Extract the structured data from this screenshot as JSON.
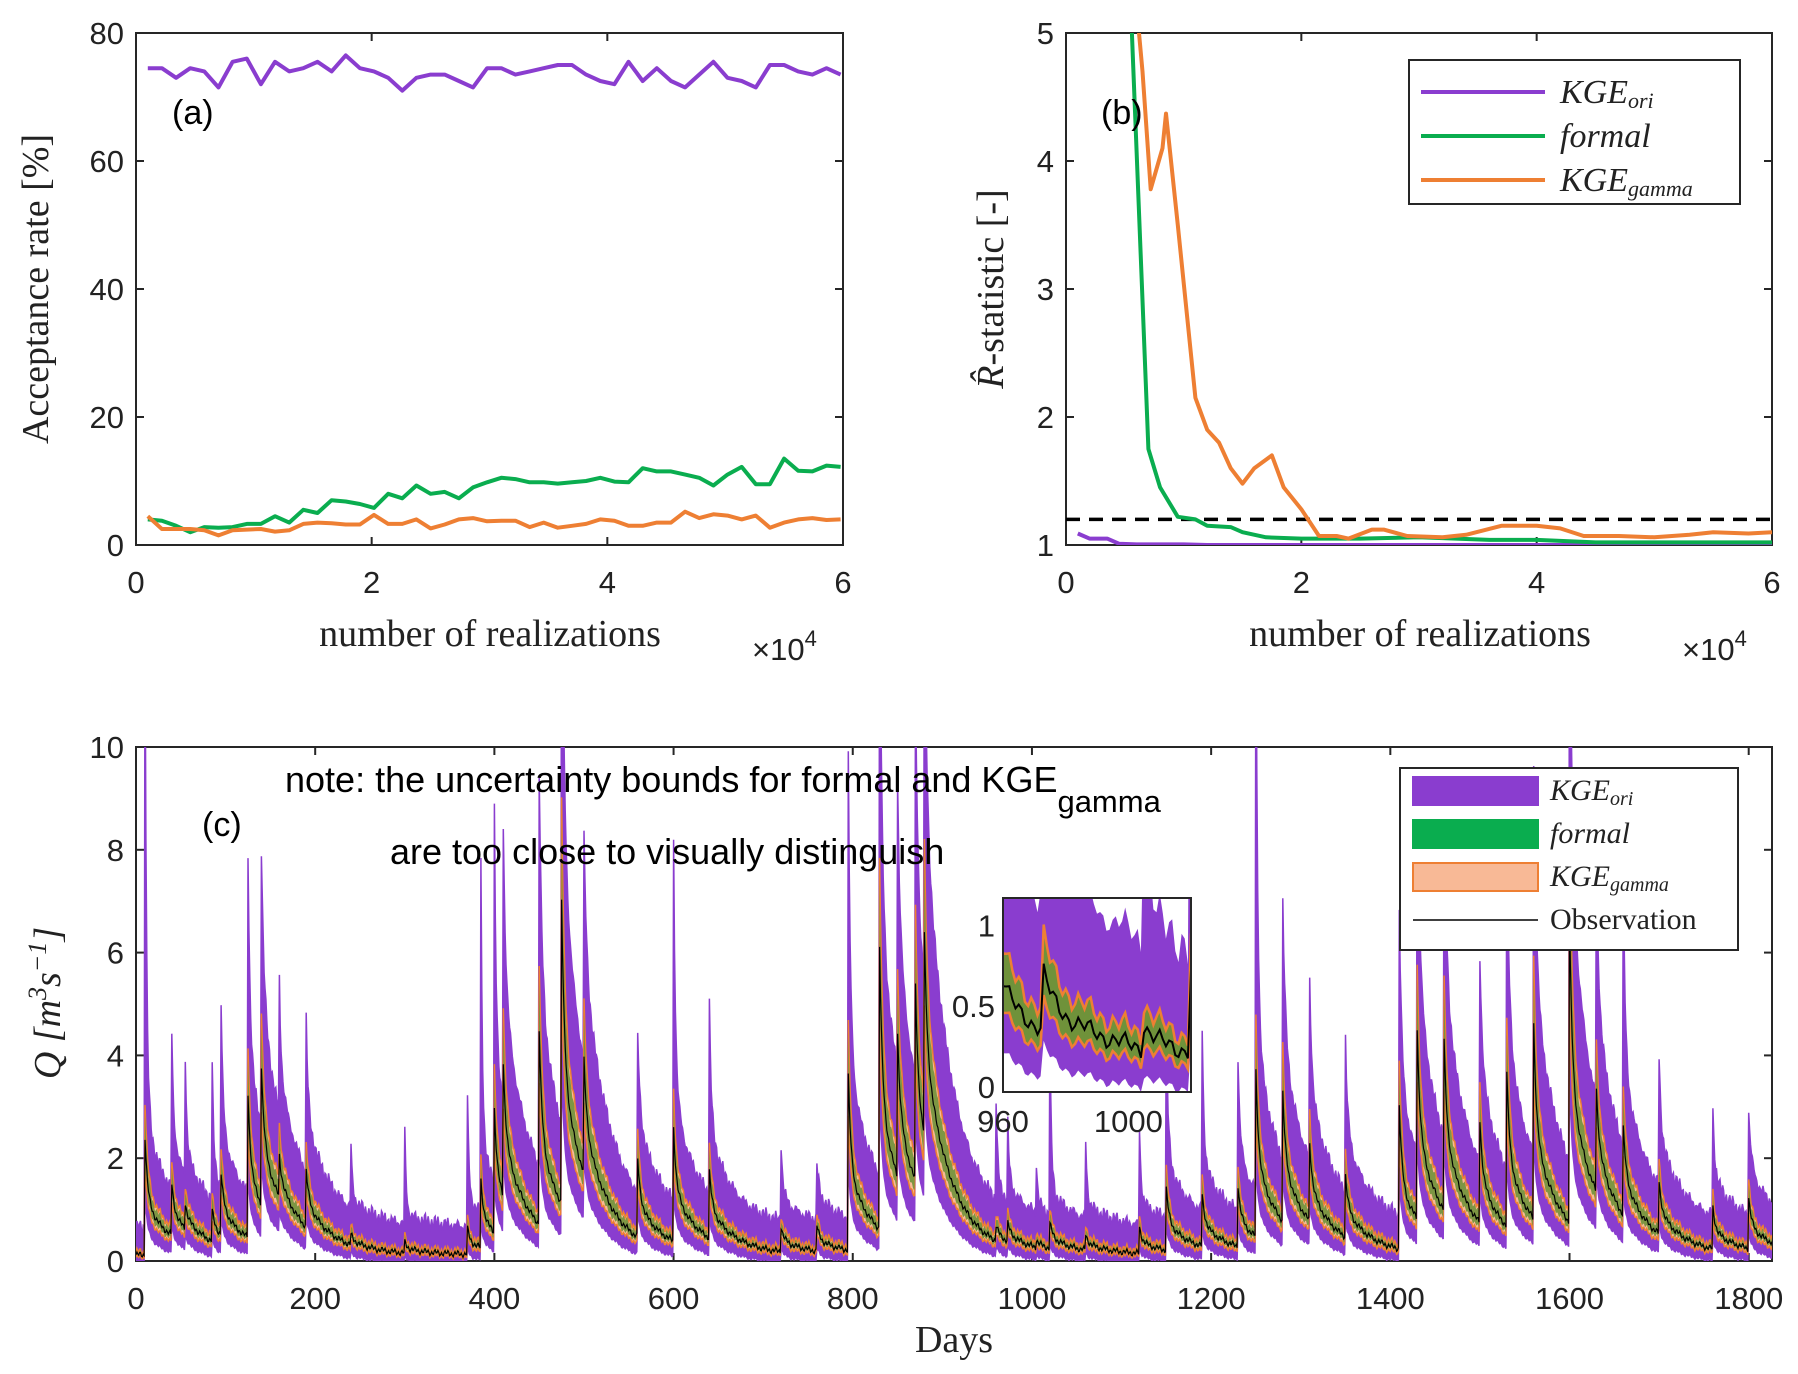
{
  "colors": {
    "purple": "#8a3dcf",
    "green": "#0aad4f",
    "orange": "#ee7f33",
    "orange_fill": "#f8b996",
    "inset_band": "#6f923a",
    "black": "#000000"
  },
  "chart_data": [
    {
      "type": "line",
      "panel_label": "(a)",
      "xlabel": "number of realizations",
      "x_multiplier": "×10",
      "x_multiplier_exp": "4",
      "ylabel": "Acceptance rate [%]",
      "xlim": [
        0,
        60000
      ],
      "ylim": [
        0,
        80
      ],
      "xticks": [
        0,
        2,
        4,
        6
      ],
      "yticks": [
        0,
        20,
        40,
        60,
        80
      ],
      "x_start": 1000,
      "x_step": 1200,
      "series": [
        {
          "name": "KGE_ori",
          "color": "purple",
          "values": [
            74.5,
            74.5,
            73,
            74.5,
            74,
            71.5,
            75.5,
            76,
            72,
            75.5,
            74,
            74.5,
            75.5,
            74,
            76.5,
            74.5,
            74,
            73,
            71,
            73,
            73.5,
            73.5,
            72.5,
            71.5,
            74.5,
            74.5,
            73.5,
            74,
            74.5,
            75,
            75,
            73.5,
            72.5,
            72,
            75.5,
            72.5,
            74.5,
            72.5,
            71.5,
            73.5,
            75.5,
            73,
            72.5,
            71.5,
            75,
            75,
            74,
            73.5,
            74.5,
            73.5
          ]
        },
        {
          "name": "formal",
          "color": "green",
          "values": [
            4,
            3.8,
            3,
            2,
            2.8,
            2.7,
            2.8,
            3.3,
            3.3,
            4.5,
            3.5,
            5.5,
            5,
            7,
            6.8,
            6.4,
            5.8,
            8,
            7.3,
            9.3,
            8,
            8.3,
            7.3,
            9,
            9.8,
            10.5,
            10.3,
            9.8,
            9.8,
            9.6,
            9.8,
            10,
            10.5,
            9.9,
            9.8,
            12,
            11.5,
            11.5,
            11,
            10.5,
            9.3,
            11,
            12.2,
            9.5,
            9.5,
            13.5,
            11.6,
            11.5,
            12.4,
            12.2
          ]
        },
        {
          "name": "KGE_gamma",
          "color": "orange",
          "values": [
            4.5,
            2.5,
            2.5,
            2.5,
            2.3,
            1.5,
            2.3,
            2.4,
            2.5,
            2.1,
            2.3,
            3.3,
            3.5,
            3.4,
            3.2,
            3.2,
            4.7,
            3.3,
            3.3,
            4,
            2.6,
            3.2,
            4,
            4.2,
            3.7,
            3.8,
            3.8,
            2.8,
            3.5,
            2.7,
            3,
            3.3,
            4,
            3.8,
            3,
            3,
            3.5,
            3.5,
            5.2,
            4.2,
            4.8,
            4.6,
            4,
            4.6,
            2.7,
            3.5,
            4,
            4.2,
            3.9,
            4
          ]
        }
      ]
    },
    {
      "type": "line",
      "panel_label": "(b)",
      "xlabel": "number of realizations",
      "x_multiplier": "×10",
      "x_multiplier_exp": "4",
      "ylabel": "-statistic [-]",
      "ylabel_symbol": "R̂",
      "xlim": [
        0,
        60000
      ],
      "ylim": [
        1,
        5
      ],
      "xticks": [
        0,
        2,
        4,
        6
      ],
      "yticks": [
        1,
        2,
        3,
        4,
        5
      ],
      "threshold": 1.2,
      "legend": [
        {
          "name": "KGE",
          "sub": "ori",
          "color": "purple"
        },
        {
          "name": "formal",
          "sub": "",
          "color": "green"
        },
        {
          "name": "KGE",
          "sub": "gamma",
          "color": "orange"
        }
      ],
      "series": [
        {
          "name": "KGE_ori",
          "color": "purple",
          "points": [
            [
              1000,
              1.09
            ],
            [
              2000,
              1.05
            ],
            [
              3500,
              1.05
            ],
            [
              4500,
              1.01
            ],
            [
              6000,
              1.005
            ],
            [
              10000,
              1.005
            ],
            [
              12000,
              1.0
            ],
            [
              60000,
              1.0
            ]
          ]
        },
        {
          "name": "formal",
          "color": "green",
          "points": [
            [
              5000,
              6
            ],
            [
              5600,
              5
            ],
            [
              7000,
              1.75
            ],
            [
              8000,
              1.45
            ],
            [
              9500,
              1.22
            ],
            [
              11000,
              1.2
            ],
            [
              12000,
              1.15
            ],
            [
              14000,
              1.14
            ],
            [
              15000,
              1.1
            ],
            [
              17000,
              1.06
            ],
            [
              20000,
              1.05
            ],
            [
              25000,
              1.05
            ],
            [
              30000,
              1.06
            ],
            [
              36000,
              1.04
            ],
            [
              40000,
              1.04
            ],
            [
              45000,
              1.02
            ],
            [
              60000,
              1.02
            ]
          ]
        },
        {
          "name": "KGE_gamma",
          "color": "orange",
          "points": [
            [
              5800,
              6
            ],
            [
              6200,
              5
            ],
            [
              6500,
              4.7
            ],
            [
              7200,
              3.78
            ],
            [
              8200,
              4.1
            ],
            [
              8500,
              4.37
            ],
            [
              9500,
              3.5
            ],
            [
              11000,
              2.15
            ],
            [
              12000,
              1.9
            ],
            [
              13000,
              1.8
            ],
            [
              14000,
              1.6
            ],
            [
              15000,
              1.48
            ],
            [
              16000,
              1.6
            ],
            [
              17500,
              1.7
            ],
            [
              18500,
              1.45
            ],
            [
              20000,
              1.28
            ],
            [
              21500,
              1.07
            ],
            [
              23000,
              1.07
            ],
            [
              24000,
              1.05
            ],
            [
              26000,
              1.12
            ],
            [
              27000,
              1.12
            ],
            [
              29000,
              1.07
            ],
            [
              32000,
              1.06
            ],
            [
              34000,
              1.08
            ],
            [
              37000,
              1.15
            ],
            [
              40000,
              1.15
            ],
            [
              42000,
              1.13
            ],
            [
              44000,
              1.07
            ],
            [
              47000,
              1.07
            ],
            [
              50000,
              1.06
            ],
            [
              53000,
              1.08
            ],
            [
              55000,
              1.1
            ],
            [
              58000,
              1.09
            ],
            [
              60000,
              1.1
            ]
          ]
        }
      ]
    },
    {
      "type": "area",
      "panel_label": "(c)",
      "xlabel": "Days",
      "ylabel": "Q [m",
      "ylabel_exp1": "3",
      "ylabel_mid": "s",
      "ylabel_exp2": "−1",
      "ylabel_end": "]",
      "xlim": [
        0,
        1826
      ],
      "ylim": [
        0,
        10
      ],
      "xticks": [
        0,
        200,
        400,
        600,
        800,
        1000,
        1200,
        1400,
        1600,
        1800
      ],
      "yticks": [
        0,
        2,
        4,
        6,
        8,
        10
      ],
      "note_line1": "note: the uncertainty bounds for formal and KGE",
      "note_sub": "gamma",
      "note_line2": "are too close to visually distinguish",
      "legend": [
        {
          "name": "KGE",
          "sub": "ori",
          "color": "purple"
        },
        {
          "name": "formal",
          "sub": "",
          "color": "green"
        },
        {
          "name": "KGE",
          "sub": "gamma",
          "color": "orange_fill"
        },
        {
          "name": "Observation",
          "sub": "",
          "color": "black"
        }
      ],
      "events_day_obs_upper": [
        [
          10,
          2.3,
          12
        ],
        [
          40,
          1.0,
          3
        ],
        [
          55,
          0.5,
          2.3
        ],
        [
          85,
          0.6,
          2.6
        ],
        [
          95,
          1.2,
          3.6
        ],
        [
          125,
          2.8,
          6.6
        ],
        [
          140,
          2.7,
          5.4
        ],
        [
          160,
          0.8,
          2.6
        ],
        [
          190,
          1.1,
          3
        ],
        [
          240,
          0.2,
          1.2
        ],
        [
          300,
          0.2,
          1.8
        ],
        [
          370,
          0.5,
          2.5
        ],
        [
          385,
          1.3,
          6.8
        ],
        [
          400,
          2.4,
          7.3
        ],
        [
          410,
          2.6,
          5.5
        ],
        [
          450,
          3.8,
          7.7
        ],
        [
          475,
          5.9,
          12
        ],
        [
          500,
          2.2,
          3
        ],
        [
          560,
          1.5,
          2.6
        ],
        [
          600,
          2.2,
          7
        ],
        [
          640,
          1.3,
          3.7
        ],
        [
          720,
          0.5,
          1.5
        ],
        [
          760,
          0.5,
          1.1
        ],
        [
          795,
          3.4,
          9
        ],
        [
          830,
          5.5,
          12
        ],
        [
          850,
          2.8,
          4.5
        ],
        [
          870,
          3.8,
          6
        ],
        [
          880,
          3.9,
          5.5
        ],
        [
          960,
          0.3,
          2
        ],
        [
          973,
          0.35,
          1.5
        ],
        [
          1005,
          0.15,
          1.0
        ],
        [
          1020,
          0.5,
          3.5
        ],
        [
          1060,
          0.3,
          1.5
        ],
        [
          1120,
          0.5,
          1.8
        ],
        [
          1150,
          1.2,
          4
        ],
        [
          1190,
          1.0,
          3.5
        ],
        [
          1230,
          1.2,
          3
        ],
        [
          1250,
          3.2,
          12
        ],
        [
          1280,
          2.5,
          5
        ],
        [
          1310,
          1.5,
          3.5
        ],
        [
          1350,
          1.2,
          3
        ],
        [
          1410,
          2.8,
          6
        ],
        [
          1430,
          3.7,
          6.3
        ],
        [
          1460,
          3.3,
          6
        ],
        [
          1500,
          2,
          3.5
        ],
        [
          1530,
          3,
          6.6
        ],
        [
          1560,
          3.8,
          6
        ],
        [
          1600,
          6,
          12
        ],
        [
          1630,
          2,
          5
        ],
        [
          1660,
          1.7,
          5.5
        ],
        [
          1700,
          1,
          2.5
        ],
        [
          1760,
          0.8,
          2
        ],
        [
          1800,
          1,
          1.7
        ]
      ],
      "inset": {
        "xlim": [
          960,
          1020
        ],
        "ylim": [
          0,
          1.2
        ],
        "xticks": [
          960,
          1000
        ],
        "yticks": [
          "0",
          "0.5",
          "1"
        ]
      }
    }
  ]
}
